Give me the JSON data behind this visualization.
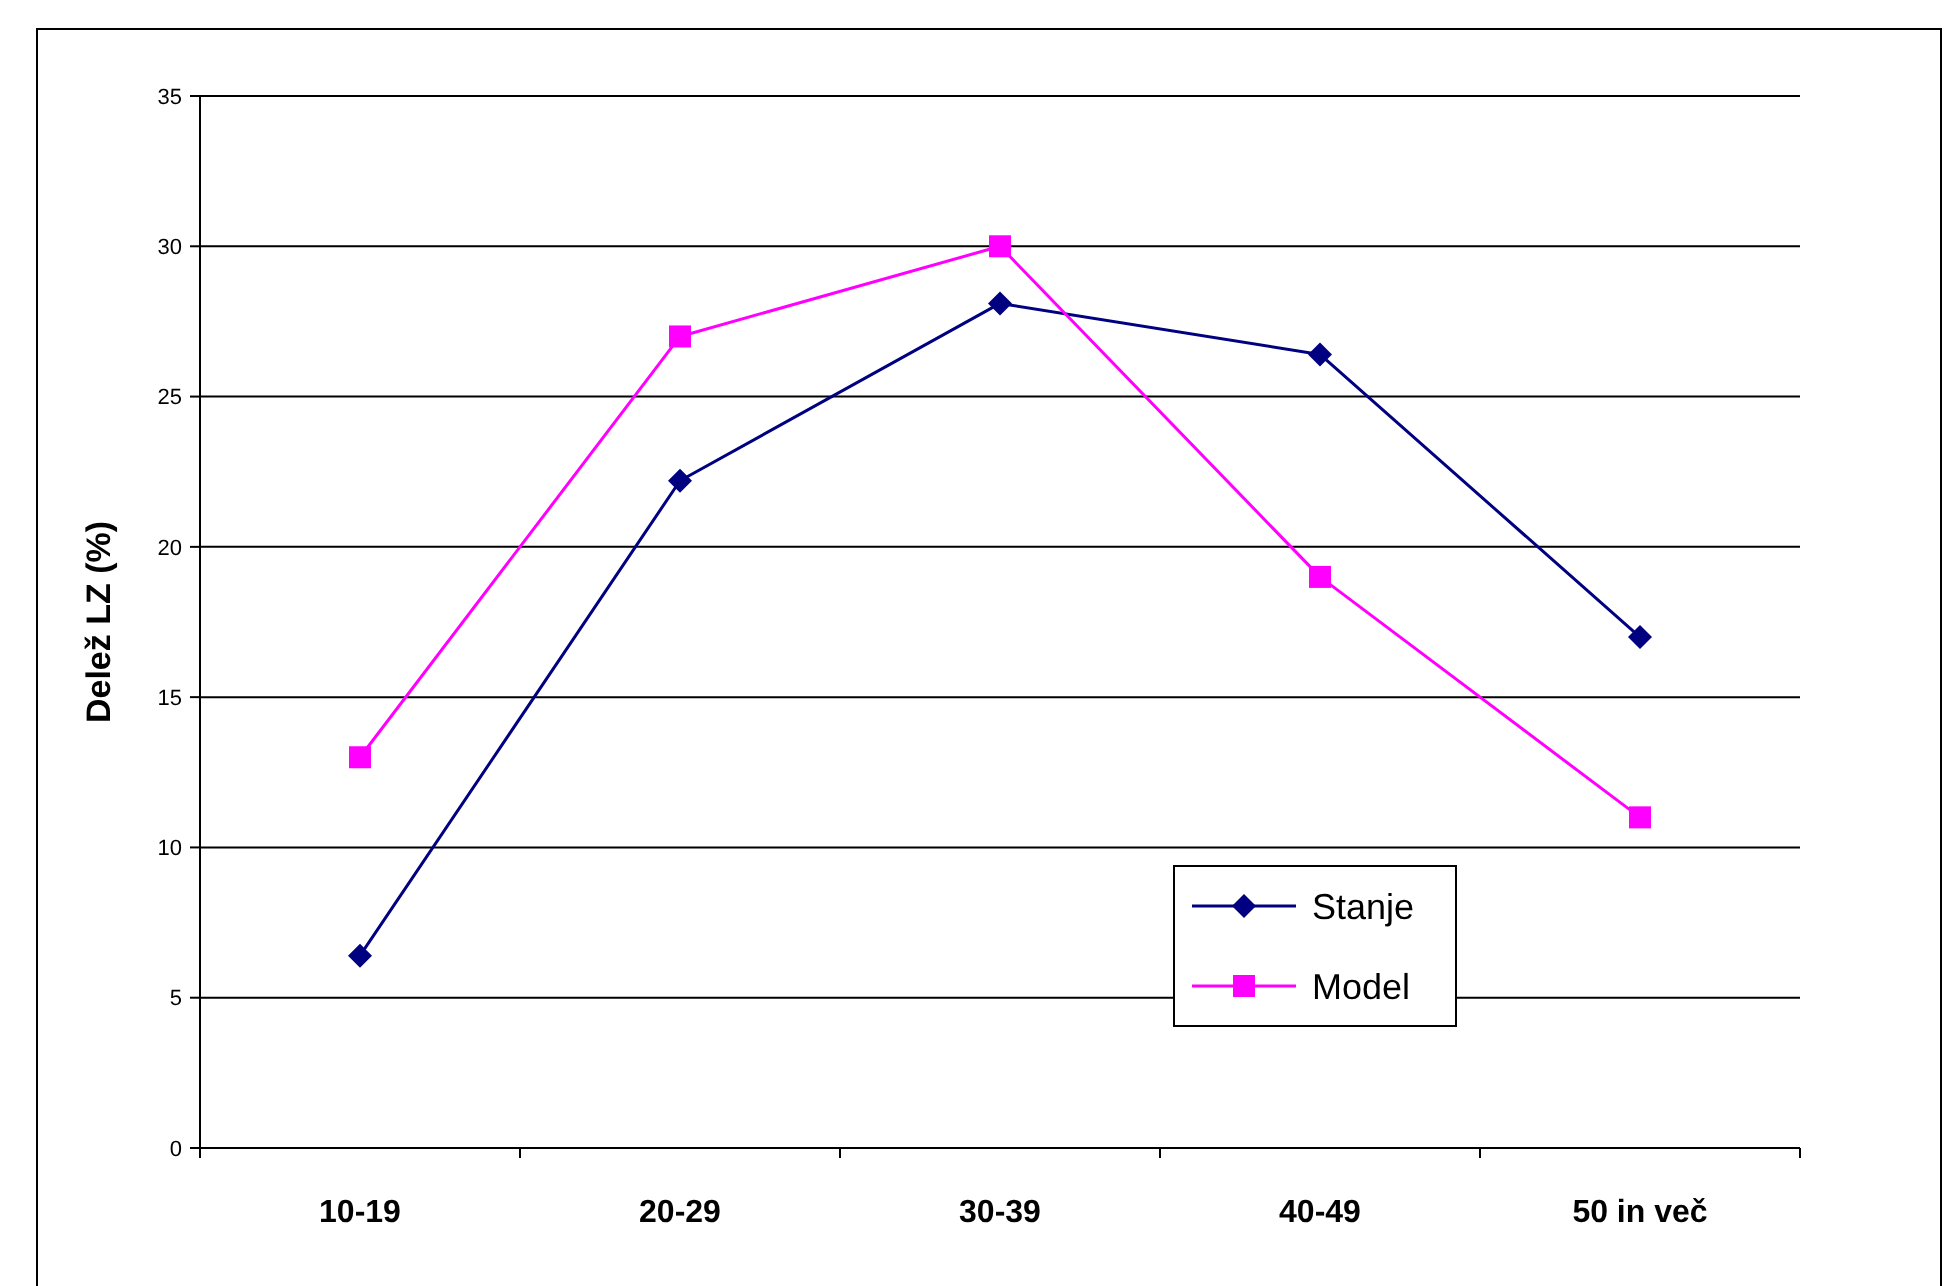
{
  "chart_data": {
    "type": "line",
    "ylabel": "Delež LZ (%)",
    "categories": [
      "10-19",
      "20-29",
      "30-39",
      "40-49",
      "50 in več"
    ],
    "series": [
      {
        "name": "Stanje",
        "color": "#000080",
        "marker": "diamond",
        "values": [
          6.4,
          22.2,
          28.1,
          26.4,
          17.0
        ]
      },
      {
        "name": "Model",
        "color": "#ff00ff",
        "marker": "square",
        "values": [
          13.0,
          27.0,
          30.0,
          19.0,
          11.0
        ]
      }
    ],
    "ylim": [
      0,
      35
    ],
    "yticks": [
      0,
      5,
      10,
      15,
      20,
      25,
      30,
      35
    ],
    "grid": "y",
    "legend": "bottom right"
  }
}
